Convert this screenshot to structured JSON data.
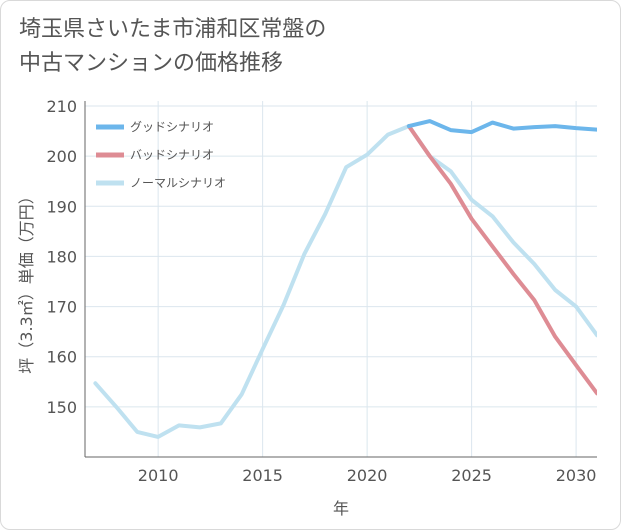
{
  "title": "埼玉県さいたま市浦和区常盤の\n中古マンションの価格推移",
  "chart_data": {
    "type": "line",
    "xlabel": "年",
    "ylabel": "坪（3.3㎡）単価（万円）",
    "xlim": [
      2006.5,
      2031
    ],
    "ylim": [
      140,
      211
    ],
    "x_ticks": [
      2010,
      2015,
      2020,
      2025,
      2030
    ],
    "y_ticks": [
      150,
      160,
      170,
      180,
      190,
      200,
      210
    ],
    "grid": true,
    "legend_position": "top-left",
    "series": [
      {
        "name": "グッドシナリオ",
        "color": "#6cb6eb",
        "x": [
          2022,
          2023,
          2024,
          2025,
          2026,
          2027,
          2028,
          2029,
          2030,
          2031
        ],
        "values": [
          206.0,
          207.0,
          205.2,
          204.8,
          206.7,
          205.5,
          205.8,
          206.0,
          205.6,
          205.3
        ]
      },
      {
        "name": "バッドシナリオ",
        "color": "#de8c94",
        "x": [
          2022,
          2023,
          2024,
          2025,
          2026,
          2027,
          2028,
          2029,
          2030,
          2031
        ],
        "values": [
          206.0,
          200.0,
          194.5,
          187.5,
          182.0,
          176.5,
          171.3,
          164.0,
          158.3,
          152.7
        ]
      },
      {
        "name": "ノーマルシナリオ",
        "color": "#bfe1f0",
        "x": [
          2007,
          2008,
          2009,
          2010,
          2011,
          2012,
          2013,
          2014,
          2015,
          2016,
          2017,
          2018,
          2019,
          2020,
          2021,
          2022,
          2023,
          2024,
          2025,
          2026,
          2027,
          2028,
          2029,
          2030,
          2031
        ],
        "values": [
          154.7,
          150.0,
          145.0,
          144.0,
          146.3,
          145.9,
          146.7,
          152.5,
          161.5,
          170.3,
          180.5,
          188.5,
          197.8,
          200.3,
          204.3,
          206.0,
          200.0,
          197.0,
          191.3,
          188.0,
          182.8,
          178.5,
          173.3,
          170.0,
          164.3
        ]
      }
    ]
  }
}
